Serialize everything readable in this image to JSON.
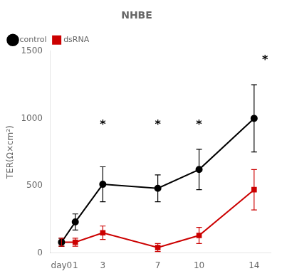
{
  "chart_data": {
    "type": "line",
    "title": "NHBE",
    "y_label": "TER(Ω×cm²)",
    "x": [
      0,
      1,
      3,
      7,
      10,
      14
    ],
    "series": [
      {
        "name": "control",
        "color": "#000000",
        "marker": "circle",
        "line_style": "solid",
        "values": [
          80,
          230,
          510,
          480,
          620,
          1000
        ],
        "errors": [
          30,
          60,
          130,
          100,
          150,
          250
        ]
      },
      {
        "name": "dsRNA",
        "color": "#cc0000",
        "marker": "square",
        "line_style": "solid",
        "values": [
          80,
          80,
          150,
          40,
          130,
          470
        ],
        "errors": [
          30,
          30,
          50,
          30,
          60,
          150
        ]
      }
    ],
    "xlim": [
      -0.8,
      15.2
    ],
    "xticks": [
      {
        "value": 0,
        "label": "day0"
      },
      1,
      3,
      7,
      10,
      14
    ],
    "ylim": [
      0,
      1500
    ],
    "yticks": [
      0,
      500,
      1000,
      1500
    ],
    "annotations": [
      {
        "text": "*",
        "x": 3,
        "y": 950
      },
      {
        "text": "*",
        "x": 7,
        "y": 950
      },
      {
        "text": "*",
        "x": 10,
        "y": 950
      },
      {
        "text": "*",
        "x": 14.8,
        "y": 1430
      }
    ],
    "grid": false,
    "legend": "upper left"
  }
}
